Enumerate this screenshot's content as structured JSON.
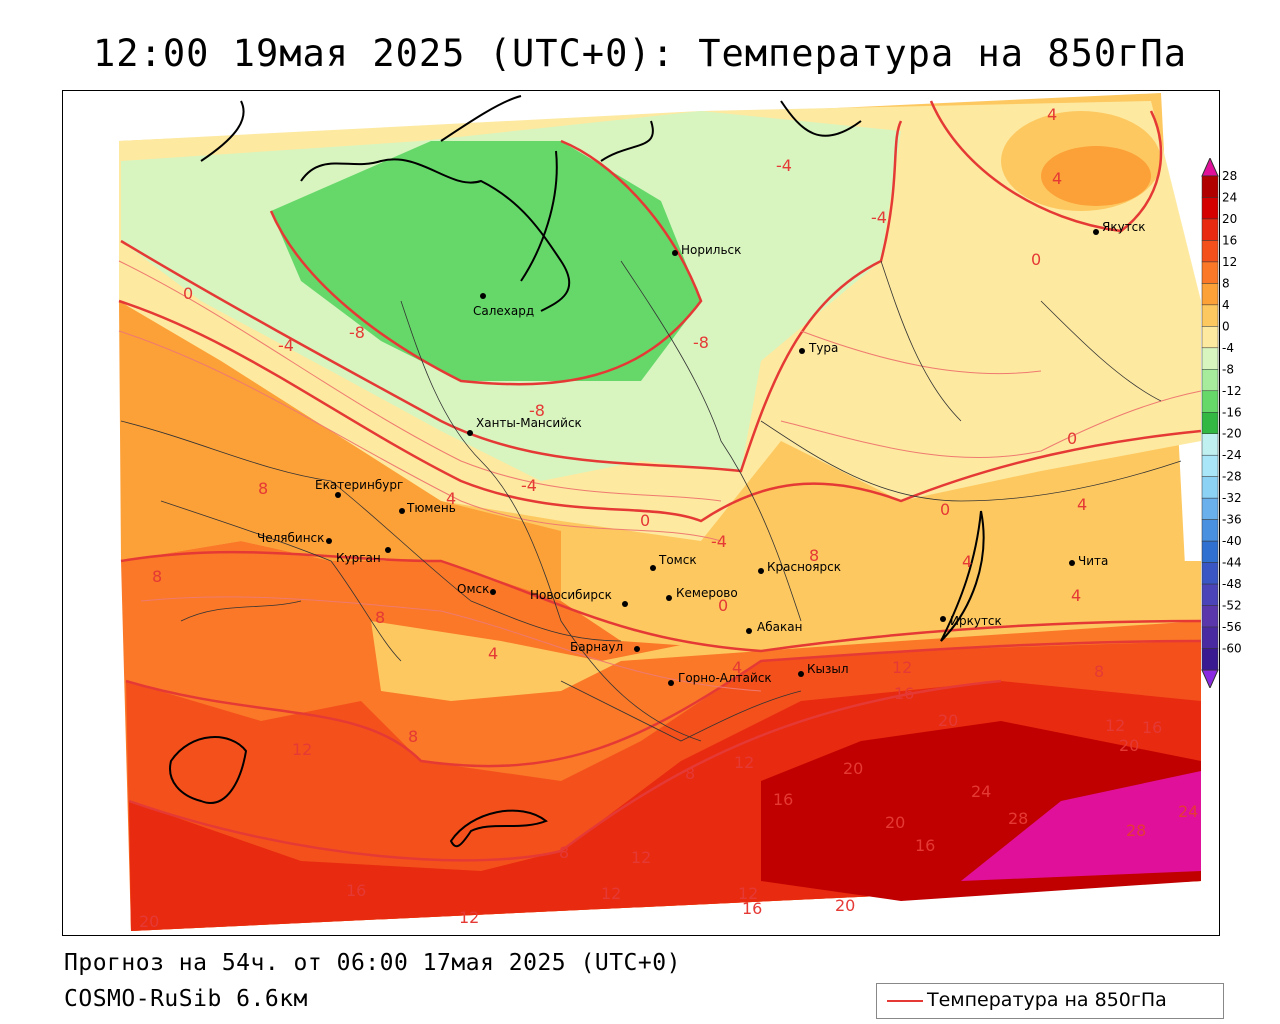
{
  "title": "12:00 19мая 2025 (UTC+0): Температура на 850гПа",
  "forecast_text": "Прогноз на 54ч. от 06:00 17мая 2025 (UTC+0)",
  "model_text": "COSMO-RuSib 6.6км",
  "legend_label": "Температура на 850гПа",
  "colors": {
    "contour_line": "#e53935",
    "border_line": "#000000"
  },
  "scale": {
    "labels": [
      "28",
      "24",
      "20",
      "16",
      "12",
      "8",
      "4",
      "0",
      "-4",
      "-8",
      "-12",
      "-16",
      "-20",
      "-24",
      "-28",
      "-32",
      "-36",
      "-40",
      "-44",
      "-48",
      "-52",
      "-56",
      "-60"
    ],
    "colors": [
      "#b00000",
      "#d40000",
      "#e82a10",
      "#f4501c",
      "#fa7828",
      "#fca038",
      "#fdc860",
      "#fde9a0",
      "#d8f5c0",
      "#a6ec9c",
      "#66d86a",
      "#33b844",
      "#c0f0f0",
      "#a8e6f8",
      "#8cd2f4",
      "#6ab0ec",
      "#4a90e0",
      "#3070d0",
      "#3a56c4",
      "#4a44b8",
      "#5a38ac",
      "#4a2aa0",
      "#3a1a90"
    ]
  },
  "cities": [
    {
      "name": "Норильск"
    },
    {
      "name": "Якутск"
    },
    {
      "name": "Салехард"
    },
    {
      "name": "Тура"
    },
    {
      "name": "Ханты-Мансийск"
    },
    {
      "name": "Екатеринбург"
    },
    {
      "name": "Тюмень"
    },
    {
      "name": "Челябинск"
    },
    {
      "name": "Курган"
    },
    {
      "name": "Омск"
    },
    {
      "name": "Новосибирск"
    },
    {
      "name": "Томск"
    },
    {
      "name": "Кемерово"
    },
    {
      "name": "Красноярск"
    },
    {
      "name": "Барнаул"
    },
    {
      "name": "Абакан"
    },
    {
      "name": "Горно-Алтайск"
    },
    {
      "name": "Кызыл"
    },
    {
      "name": "Иркутск"
    },
    {
      "name": "Чита"
    }
  ],
  "isotherm_labels": [
    "4",
    "4",
    "0",
    "-4",
    "-4",
    "-8",
    "-8",
    "-8",
    "-4",
    "0",
    "-4",
    "0",
    "4",
    "8",
    "8",
    "4",
    "0",
    "-4",
    "0",
    "0",
    "4",
    "4",
    "8",
    "8",
    "8",
    "4",
    "8",
    "4",
    "12",
    "16",
    "20",
    "12",
    "20",
    "16",
    "12",
    "12",
    "20",
    "20",
    "24",
    "28",
    "28",
    "24",
    "16",
    "12",
    "16",
    "12",
    "8",
    "12",
    "16",
    "8",
    "20",
    "16",
    "12",
    "20"
  ]
}
